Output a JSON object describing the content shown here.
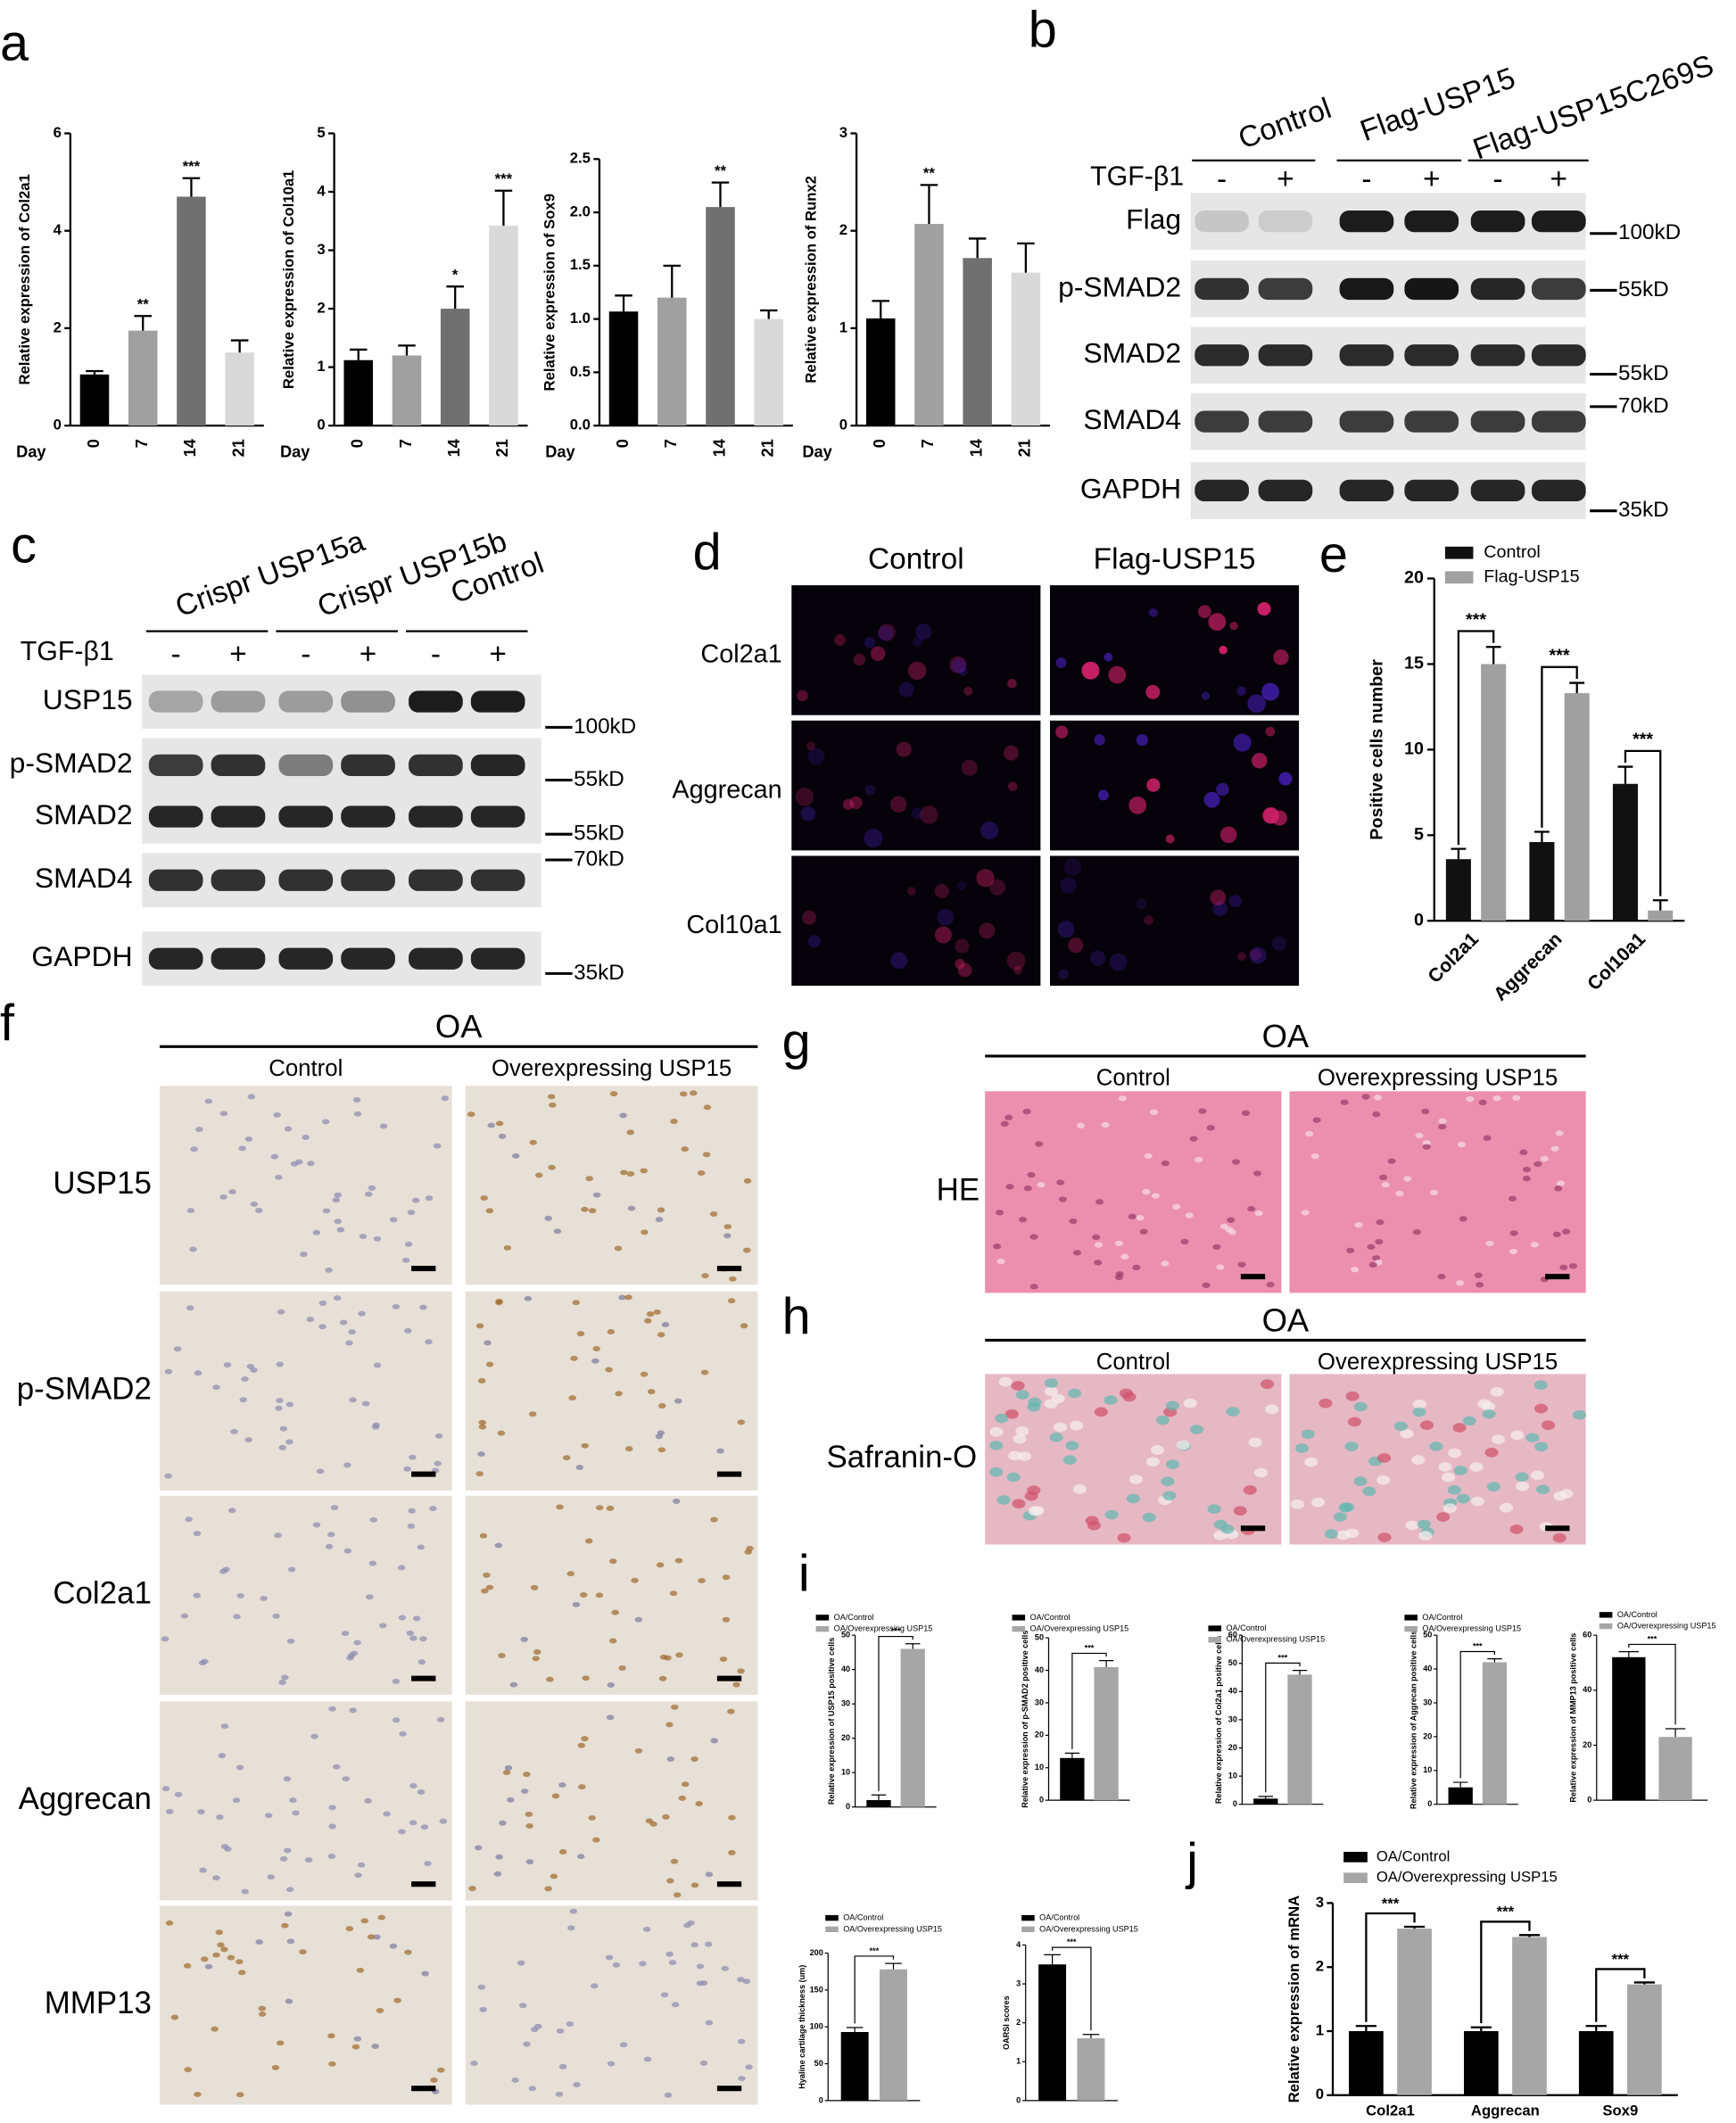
{
  "panel_labels": [
    "a",
    "b",
    "c",
    "d",
    "e",
    "f",
    "g",
    "h",
    "i",
    "j"
  ],
  "chart_data": [
    {
      "type": "bar",
      "y_label": "Relative expression of Col2a1",
      "x_label": "Day",
      "categories": [
        "0",
        "7",
        "14",
        "21"
      ],
      "values": [
        1.05,
        1.95,
        4.7,
        1.5
      ],
      "errors": [
        0.07,
        0.3,
        0.38,
        0.25
      ],
      "colors": [
        "#000000",
        "#a0a0a0",
        "#707070",
        "#d9d9d9"
      ],
      "annotations": [
        "",
        "**",
        "***",
        ""
      ],
      "ylim": [
        0,
        6
      ],
      "yticks": [
        0,
        2,
        4,
        6
      ]
    },
    {
      "type": "bar",
      "y_label": "Relative expression of Col10a1",
      "x_label": "Day",
      "categories": [
        "0",
        "7",
        "14",
        "21"
      ],
      "values": [
        1.12,
        1.2,
        2.0,
        3.42
      ],
      "errors": [
        0.18,
        0.17,
        0.38,
        0.6
      ],
      "colors": [
        "#000000",
        "#a0a0a0",
        "#707070",
        "#d9d9d9"
      ],
      "annotations": [
        "",
        "",
        "*",
        "***"
      ],
      "ylim": [
        0,
        5
      ],
      "yticks": [
        0,
        1,
        2,
        3,
        4,
        5
      ]
    },
    {
      "type": "bar",
      "y_label": "Relative expression of Sox9",
      "x_label": "Day",
      "categories": [
        "0",
        "7",
        "14",
        "21"
      ],
      "values": [
        1.07,
        1.2,
        2.05,
        1.0
      ],
      "errors": [
        0.15,
        0.3,
        0.23,
        0.08
      ],
      "colors": [
        "#000000",
        "#a0a0a0",
        "#707070",
        "#d9d9d9"
      ],
      "annotations": [
        "",
        "",
        "**",
        ""
      ],
      "ylim": [
        0,
        2.5
      ],
      "yticks": [
        {
          "value": 0,
          "label": "0.0"
        },
        0.5,
        {
          "value": 1,
          "label": "1.0"
        },
        1.5,
        {
          "value": 2,
          "label": "2.0"
        },
        2.5
      ]
    },
    {
      "type": "bar",
      "y_label": "Relative expression of Runx2",
      "x_label": "Day",
      "categories": [
        "0",
        "7",
        "14",
        "21"
      ],
      "values": [
        1.1,
        2.07,
        1.72,
        1.57
      ],
      "errors": [
        0.18,
        0.4,
        0.2,
        0.3
      ],
      "colors": [
        "#000000",
        "#a0a0a0",
        "#707070",
        "#d9d9d9"
      ],
      "annotations": [
        "",
        "**",
        "",
        ""
      ],
      "ylim": [
        0,
        3
      ],
      "yticks": [
        0,
        1,
        2,
        3
      ]
    },
    {
      "type": "bar",
      "y_label": "Positive cells number",
      "categories": [
        "Col2a1",
        "Aggrecan",
        "Col10a1"
      ],
      "series": [
        {
          "name": "Control",
          "color": "#111111",
          "values": [
            3.6,
            4.6,
            8.0
          ],
          "errors": [
            0.6,
            0.6,
            1.0
          ]
        },
        {
          "name": "Flag-USP15",
          "color": "#a0a0a0",
          "values": [
            15.0,
            13.3,
            0.6
          ],
          "errors": [
            1.0,
            0.6,
            0.6
          ]
        }
      ],
      "annotations": [
        "***",
        "***",
        "***"
      ],
      "ylim": [
        0,
        20
      ],
      "yticks": [
        0,
        5,
        10,
        15,
        20
      ]
    },
    {
      "type": "bar",
      "y_label": "Relative expression of USP15 positive cells",
      "categories": [
        null
      ],
      "series": [
        {
          "name": "OA/Control",
          "color": "#000000",
          "values": [
            2
          ],
          "errors": [
            1.5
          ]
        },
        {
          "name": "OA/Overexpressing USP15",
          "color": "#a6a6a6",
          "values": [
            46
          ],
          "errors": [
            1.5
          ]
        }
      ],
      "annotations": [
        "***"
      ],
      "ylim": [
        0,
        50
      ],
      "yticks": [
        0,
        10,
        20,
        30,
        40,
        50
      ]
    },
    {
      "type": "bar",
      "y_label": "Relative expression of p-SMAD2 positive cells",
      "categories": [
        null
      ],
      "series": [
        {
          "name": "OA/Control",
          "color": "#000000",
          "values": [
            13
          ],
          "errors": [
            1.5
          ]
        },
        {
          "name": "OA/Overexpressing USP15",
          "color": "#a6a6a6",
          "values": [
            41
          ],
          "errors": [
            2
          ]
        }
      ],
      "annotations": [
        "***"
      ],
      "ylim": [
        0,
        50
      ],
      "yticks": [
        0,
        10,
        20,
        30,
        40,
        50
      ]
    },
    {
      "type": "bar",
      "y_label": "Relative expression of Col2a1 positive cells",
      "categories": [
        null
      ],
      "series": [
        {
          "name": "OA/Control",
          "color": "#000000",
          "values": [
            2
          ],
          "errors": [
            0.8
          ]
        },
        {
          "name": "OA/Overexpressing USP15",
          "color": "#a6a6a6",
          "values": [
            46
          ],
          "errors": [
            1.5
          ]
        }
      ],
      "annotations": [
        "***"
      ],
      "ylim": [
        0,
        60
      ],
      "yticks": [
        0,
        10,
        20,
        30,
        40,
        50,
        60
      ]
    },
    {
      "type": "bar",
      "y_label": "Relative expression of Aggrecan positive cells",
      "categories": [
        null
      ],
      "series": [
        {
          "name": "OA/Control",
          "color": "#000000",
          "values": [
            5
          ],
          "errors": [
            1.5
          ]
        },
        {
          "name": "OA/Overexpressing USP15",
          "color": "#a6a6a6",
          "values": [
            42
          ],
          "errors": [
            1
          ]
        }
      ],
      "annotations": [
        "***"
      ],
      "ylim": [
        0,
        50
      ],
      "yticks": [
        0,
        10,
        20,
        30,
        40,
        50
      ]
    },
    {
      "type": "bar",
      "y_label": "Relative expression of MMP13 positive cells",
      "categories": [
        null
      ],
      "series": [
        {
          "name": "OA/Control",
          "color": "#000000",
          "values": [
            52
          ],
          "errors": [
            2
          ]
        },
        {
          "name": "OA/Overexpressing USP15",
          "color": "#a6a6a6",
          "values": [
            23
          ],
          "errors": [
            3
          ]
        }
      ],
      "annotations": [
        "***"
      ],
      "ylim": [
        0,
        60
      ],
      "yticks": [
        0,
        20,
        40,
        60
      ]
    },
    {
      "type": "bar",
      "y_label": "Hyaline cartilage thickness (um)",
      "categories": [
        null
      ],
      "series": [
        {
          "name": "OA/Control",
          "color": "#000000",
          "values": [
            93
          ],
          "errors": [
            6
          ]
        },
        {
          "name": "OA/Overexpressing USP15",
          "color": "#a6a6a6",
          "values": [
            178
          ],
          "errors": [
            8
          ]
        }
      ],
      "annotations": [
        "***"
      ],
      "ylim": [
        0,
        200
      ],
      "yticks": [
        0,
        50,
        100,
        150,
        200
      ]
    },
    {
      "type": "bar",
      "y_label": "OARSI scores",
      "categories": [
        null
      ],
      "series": [
        {
          "name": "OA/Control",
          "color": "#000000",
          "values": [
            3.5
          ],
          "errors": [
            0.25
          ]
        },
        {
          "name": "OA/Overexpressing USP15",
          "color": "#a6a6a6",
          "values": [
            1.6
          ],
          "errors": [
            0.1
          ]
        }
      ],
      "annotations": [
        "***"
      ],
      "ylim": [
        0,
        4
      ],
      "yticks": [
        0,
        1,
        2,
        3,
        4
      ]
    },
    {
      "type": "bar",
      "y_label": "Relative expression of mRNA",
      "categories": [
        "Col2a1",
        "Aggrecan",
        "Sox9"
      ],
      "series": [
        {
          "name": "OA/Control",
          "color": "#000000",
          "values": [
            1.0,
            1.0,
            1.0
          ],
          "errors": [
            0.08,
            0.06,
            0.08
          ]
        },
        {
          "name": "OA/Overexpressing USP15",
          "color": "#a6a6a6",
          "values": [
            2.6,
            2.47,
            1.73
          ],
          "errors": [
            0.03,
            0.03,
            0.03
          ]
        }
      ],
      "annotations": [
        "***",
        "***",
        "***"
      ],
      "ylim": [
        0,
        3
      ],
      "yticks": [
        0,
        1,
        2,
        3
      ]
    }
  ],
  "blot_b": {
    "groups": [
      "Control",
      "Flag-USP15",
      "Flag-USP15C269S"
    ],
    "treatment_label": "TGF-β1",
    "treatment": [
      "-",
      "+",
      "-",
      "+",
      "-",
      "+"
    ],
    "rows": [
      "Flag",
      "p-SMAD2",
      "SMAD2",
      "SMAD4",
      "GAPDH"
    ],
    "markers": [
      "100kD",
      "55kD",
      "55kD",
      "70kD",
      "35kD"
    ]
  },
  "blot_c": {
    "groups": [
      "Crispr USP15a",
      "Crispr USP15b",
      "Control"
    ],
    "treatment_label": "TGF-β1",
    "treatment": [
      "-",
      "+",
      "-",
      "+",
      "-",
      "+"
    ],
    "rows": [
      "USP15",
      "p-SMAD2",
      "SMAD2",
      "SMAD4",
      "GAPDH"
    ],
    "markers": [
      "100kD",
      "55kD",
      "55kD",
      "70kD",
      "35kD"
    ]
  },
  "panel_d": {
    "columns": [
      "Control",
      "Flag-USP15"
    ],
    "rows": [
      "Col2a1",
      "Aggrecan",
      "Col10a1"
    ]
  },
  "panel_f": {
    "group": "OA",
    "columns": [
      "Control",
      "Overexpressing USP15"
    ],
    "rows": [
      "USP15",
      "p-SMAD2",
      "Col2a1",
      "Aggrecan",
      "MMP13"
    ]
  },
  "panel_g": {
    "group": "OA",
    "columns": [
      "Control",
      "Overexpressing USP15"
    ],
    "rows": [
      "HE"
    ]
  },
  "panel_h": {
    "group": "OA",
    "columns": [
      "Control",
      "Overexpressing USP15"
    ],
    "rows": [
      "Safranin-O"
    ]
  }
}
